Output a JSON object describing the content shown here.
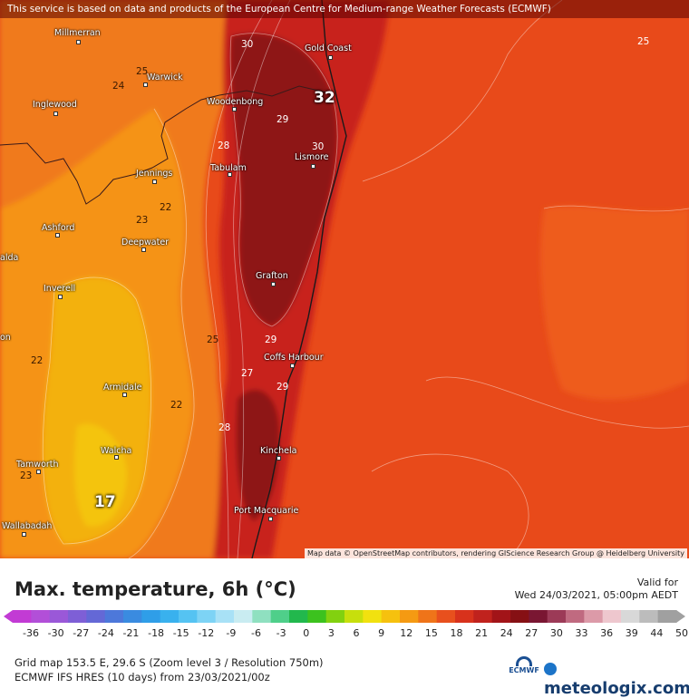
{
  "banner": "This service is based on data and products of the European Centre for Medium-range Weather Forecasts (ECMWF)",
  "attribution": "Map data © OpenStreetMap contributors, rendering GIScience Research Group @ Heidelberg University",
  "cities": [
    {
      "name": "Millmerran"
    },
    {
      "name": "Gold Coast"
    },
    {
      "name": "Warwick"
    },
    {
      "name": "Inglewood"
    },
    {
      "name": "Woodenbong"
    },
    {
      "name": "Lismore"
    },
    {
      "name": "Tabulam"
    },
    {
      "name": "Jennings"
    },
    {
      "name": "Ashford"
    },
    {
      "name": "Deepwater"
    },
    {
      "name": "Grafton"
    },
    {
      "name": "Inverell"
    },
    {
      "name": "Coffs Harbour"
    },
    {
      "name": "Armidale"
    },
    {
      "name": "Kinchela"
    },
    {
      "name": "Walcha"
    },
    {
      "name": "Tamworth"
    },
    {
      "name": "Port Macquarie"
    },
    {
      "name": "Wallabadah"
    },
    {
      "name": "alda"
    },
    {
      "name": "on"
    }
  ],
  "contour_labels": [
    "30",
    "25",
    "25",
    "24",
    "29",
    "28",
    "30",
    "23",
    "22",
    "25",
    "29",
    "22",
    "27",
    "29",
    "22",
    "28",
    "23",
    "25",
    "22"
  ],
  "extremes": {
    "max": "32",
    "min": "17"
  },
  "legend": {
    "title": "Max. temperature, 6h (°C)",
    "valid_label": "Valid for",
    "valid_time": "Wed 24/03/2021, 05:00pm AEDT",
    "ticks": [
      "-36",
      "-30",
      "-27",
      "-24",
      "-21",
      "-18",
      "-15",
      "-12",
      "-9",
      "-6",
      "-3",
      "0",
      "3",
      "6",
      "9",
      "12",
      "15",
      "18",
      "21",
      "24",
      "27",
      "30",
      "33",
      "36",
      "39",
      "44",
      "50"
    ],
    "colors": [
      "#c23bd4",
      "#b24fd8",
      "#9a58d8",
      "#7e5fd6",
      "#6468d6",
      "#4d78da",
      "#3a8be0",
      "#2f9ee8",
      "#39b1ee",
      "#55c3f2",
      "#7dd3f5",
      "#a8e1f6",
      "#c9ecf1",
      "#8fe0c0",
      "#4fcf8a",
      "#22b84d",
      "#3cc21e",
      "#82d10f",
      "#c7df0c",
      "#f1e10f",
      "#f6c10e",
      "#f59a12",
      "#ef7419",
      "#e8501d",
      "#d8321c",
      "#c0221d",
      "#a21418",
      "#861014",
      "#7a1632",
      "#9c3a57",
      "#c06a80",
      "#dc9aa8",
      "#eec7ce",
      "#d8d8d8",
      "#bcbcbc",
      "#a0a0a0"
    ]
  },
  "info": {
    "line1": "Grid map 153.5 E, 29.6 S (Zoom level 3 / Resolution 750m)",
    "line2": "ECMWF IFS HRES (10 days) from 23/03/2021/00z"
  },
  "logos": {
    "ecmwf": "ECMWF",
    "meteologix": "meteologix.com"
  }
}
